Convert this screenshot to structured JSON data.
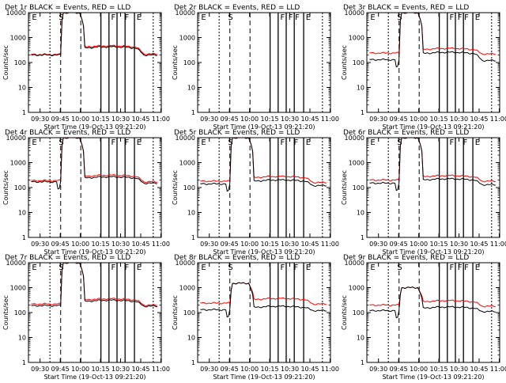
{
  "page": {
    "xlabel": "Start Time (19-Oct-13 09:21:20)",
    "ylabel": "Counts/sec",
    "time_ticks": [
      "09:30",
      "09:45",
      "10:00",
      "10:15",
      "10:30",
      "10:45",
      "11:00"
    ],
    "y_ticks": [
      "1",
      "10",
      "100",
      "1000",
      "10000"
    ]
  },
  "chart_data": [
    {
      "type": "line",
      "title": "Det 1r BLACK = Events, RED = LLD",
      "empty": false,
      "short_blip": false,
      "event_markers": [
        "E",
        "S",
        "F",
        "F",
        "E"
      ],
      "peak": 10000,
      "series": [
        {
          "name": "Events",
          "color": "#000000",
          "pre": 200,
          "plateau": 380,
          "post": 200
        },
        {
          "name": "LLD",
          "color": "#ff0000",
          "pre": 210,
          "plateau": 420,
          "post": 220
        }
      ]
    },
    {
      "type": "line",
      "title": "Det 2r BLACK = Events, RED = LLD",
      "empty": true,
      "short_blip": false,
      "event_markers": [
        "E",
        "S",
        "F",
        "F",
        "F",
        "E"
      ],
      "peak": 0,
      "series": []
    },
    {
      "type": "line",
      "title": "Det 3r BLACK = Events, RED = LLD",
      "empty": false,
      "short_blip": true,
      "event_markers": [
        "E",
        "S",
        "F",
        "F",
        "F",
        "E"
      ],
      "peak": 10000,
      "series": [
        {
          "name": "Events",
          "color": "#000000",
          "pre": 130,
          "plateau": 230,
          "post": 120
        },
        {
          "name": "LLD",
          "color": "#ff0000",
          "pre": 240,
          "plateau": 330,
          "post": 220
        }
      ]
    },
    {
      "type": "line",
      "title": "Det 4r BLACK = Events, RED = LLD",
      "empty": false,
      "short_blip": true,
      "event_markers": [
        "E",
        "S",
        "F",
        "F",
        "E"
      ],
      "peak": 10000,
      "series": [
        {
          "name": "Events",
          "color": "#000000",
          "pre": 170,
          "plateau": 240,
          "post": 150
        },
        {
          "name": "LLD",
          "color": "#ff0000",
          "pre": 190,
          "plateau": 280,
          "post": 170
        }
      ]
    },
    {
      "type": "line",
      "title": "Det 5r BLACK = Events, RED = LLD",
      "empty": false,
      "short_blip": true,
      "event_markers": [
        "E",
        "S",
        "F",
        "F",
        "E"
      ],
      "peak": 10000,
      "series": [
        {
          "name": "Events",
          "color": "#000000",
          "pre": 140,
          "plateau": 180,
          "post": 120
        },
        {
          "name": "LLD",
          "color": "#ff0000",
          "pre": 180,
          "plateau": 250,
          "post": 160
        }
      ]
    },
    {
      "type": "line",
      "title": "Det 6r BLACK = Events, RED = LLD",
      "empty": false,
      "short_blip": true,
      "event_markers": [
        "E",
        "S",
        "F",
        "F",
        "E"
      ],
      "peak": 10000,
      "series": [
        {
          "name": "Events",
          "color": "#000000",
          "pre": 150,
          "plateau": 200,
          "post": 130
        },
        {
          "name": "LLD",
          "color": "#ff0000",
          "pre": 200,
          "plateau": 270,
          "post": 180
        }
      ]
    },
    {
      "type": "line",
      "title": "Det 7r BLACK = Events, RED = LLD",
      "empty": false,
      "short_blip": false,
      "event_markers": [
        "E",
        "S",
        "F",
        "F",
        "E"
      ],
      "peak": 10000,
      "series": [
        {
          "name": "Events",
          "color": "#000000",
          "pre": 190,
          "plateau": 280,
          "post": 180
        },
        {
          "name": "LLD",
          "color": "#ff0000",
          "pre": 220,
          "plateau": 320,
          "post": 200
        }
      ]
    },
    {
      "type": "line",
      "title": "Det 8r BLACK = Events, RED = LLD",
      "empty": false,
      "short_blip": true,
      "event_markers": [
        "E",
        "S",
        "F",
        "F",
        "E"
      ],
      "peak": 1500,
      "series": [
        {
          "name": "Events",
          "color": "#000000",
          "pre": 130,
          "plateau": 160,
          "post": 120
        },
        {
          "name": "LLD",
          "color": "#ff0000",
          "pre": 240,
          "plateau": 330,
          "post": 220
        }
      ]
    },
    {
      "type": "line",
      "title": "Det 9r BLACK = Events, RED = LLD",
      "empty": false,
      "short_blip": true,
      "event_markers": [
        "E",
        "S",
        "F",
        "F",
        "F",
        "E"
      ],
      "peak": 1000,
      "series": [
        {
          "name": "Events",
          "color": "#000000",
          "pre": 120,
          "plateau": 150,
          "post": 110
        },
        {
          "name": "LLD",
          "color": "#ff0000",
          "pre": 200,
          "plateau": 270,
          "post": 180
        }
      ]
    }
  ]
}
